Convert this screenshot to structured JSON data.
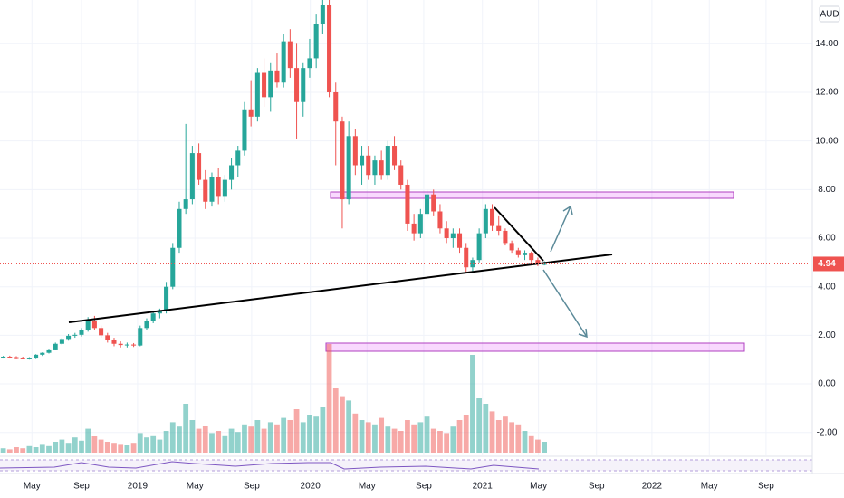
{
  "chart_data": {
    "type": "candlestick",
    "currency": "AUD",
    "ylim": [
      -2.83,
      15.8
    ],
    "yticks": [
      {
        "value": -2,
        "label": "-2.00"
      },
      {
        "value": 0,
        "label": "0.00"
      },
      {
        "value": 2,
        "label": "2.00"
      },
      {
        "value": 4,
        "label": "4.00"
      },
      {
        "value": 6,
        "label": "6.00"
      },
      {
        "value": 8,
        "label": "8.00"
      },
      {
        "value": 10,
        "label": "10.00"
      },
      {
        "value": 12,
        "label": "12.00"
      },
      {
        "value": 14,
        "label": "14.00"
      }
    ],
    "xlim": [
      -0.5,
      124.1
    ],
    "xticks": [
      {
        "value": 4.4,
        "label": "May"
      },
      {
        "value": 12.0,
        "label": "Sep"
      },
      {
        "value": 20.6,
        "label": "2019"
      },
      {
        "value": 29.4,
        "label": "May"
      },
      {
        "value": 38.1,
        "label": "Sep"
      },
      {
        "value": 47.1,
        "label": "2020"
      },
      {
        "value": 55.8,
        "label": "May"
      },
      {
        "value": 64.5,
        "label": "Sep"
      },
      {
        "value": 73.5,
        "label": "2021"
      },
      {
        "value": 82.1,
        "label": "May"
      },
      {
        "value": 91.0,
        "label": "Sep"
      },
      {
        "value": 99.5,
        "label": "2022"
      },
      {
        "value": 108.3,
        "label": "May"
      },
      {
        "value": 117.0,
        "label": "Sep"
      }
    ],
    "last_price": {
      "value": 4.94,
      "label": "4.94"
    },
    "up_color": "#26a69a",
    "down_color": "#ef5350",
    "grid": true,
    "ohlc": [
      [
        1.1,
        1.15,
        1.08,
        1.12
      ],
      [
        1.12,
        1.16,
        1.08,
        1.1
      ],
      [
        1.1,
        1.14,
        1.05,
        1.08
      ],
      [
        1.08,
        1.12,
        1.02,
        1.05
      ],
      [
        1.05,
        1.1,
        1.0,
        1.08
      ],
      [
        1.08,
        1.22,
        1.06,
        1.2
      ],
      [
        1.2,
        1.3,
        1.15,
        1.28
      ],
      [
        1.28,
        1.45,
        1.25,
        1.42
      ],
      [
        1.42,
        1.7,
        1.4,
        1.65
      ],
      [
        1.65,
        1.9,
        1.6,
        1.85
      ],
      [
        1.85,
        2.05,
        1.78,
        1.98
      ],
      [
        1.98,
        2.1,
        1.9,
        2.02
      ],
      [
        2.02,
        2.3,
        1.95,
        2.2
      ],
      [
        2.2,
        2.75,
        2.15,
        2.6
      ],
      [
        2.6,
        2.8,
        2.2,
        2.3
      ],
      [
        2.3,
        2.4,
        1.9,
        2.0
      ],
      [
        2.0,
        2.1,
        1.7,
        1.8
      ],
      [
        1.8,
        1.9,
        1.55,
        1.65
      ],
      [
        1.65,
        1.75,
        1.5,
        1.6
      ],
      [
        1.6,
        1.7,
        1.5,
        1.62
      ],
      [
        1.62,
        1.68,
        1.52,
        1.58
      ],
      [
        1.58,
        2.4,
        1.55,
        2.3
      ],
      [
        2.3,
        2.7,
        2.2,
        2.6
      ],
      [
        2.6,
        3.0,
        2.5,
        2.9
      ],
      [
        2.9,
        3.1,
        2.7,
        3.0
      ],
      [
        3.0,
        4.2,
        2.9,
        4.0
      ],
      [
        4.0,
        5.8,
        3.9,
        5.6
      ],
      [
        5.6,
        7.5,
        5.4,
        7.2
      ],
      [
        7.2,
        10.7,
        7.0,
        7.6
      ],
      [
        7.6,
        9.8,
        7.4,
        9.5
      ],
      [
        9.5,
        9.9,
        8.2,
        8.4
      ],
      [
        8.4,
        8.8,
        7.2,
        7.5
      ],
      [
        7.5,
        8.7,
        7.3,
        8.5
      ],
      [
        8.5,
        8.9,
        7.4,
        7.7
      ],
      [
        7.7,
        8.6,
        7.5,
        8.4
      ],
      [
        8.4,
        9.3,
        8.0,
        9.0
      ],
      [
        9.0,
        9.8,
        8.5,
        9.6
      ],
      [
        9.6,
        11.6,
        9.4,
        11.3
      ],
      [
        11.3,
        12.5,
        10.6,
        11.0
      ],
      [
        11.0,
        13.0,
        10.8,
        12.8
      ],
      [
        12.8,
        13.4,
        11.4,
        11.8
      ],
      [
        11.8,
        13.2,
        11.2,
        12.9
      ],
      [
        12.9,
        13.6,
        12.2,
        12.4
      ],
      [
        12.4,
        14.4,
        12.2,
        14.1
      ],
      [
        14.1,
        14.6,
        12.6,
        13.0
      ],
      [
        13.0,
        14.0,
        10.1,
        11.6
      ],
      [
        11.6,
        13.2,
        11.0,
        13.0
      ],
      [
        13.0,
        14.2,
        12.6,
        13.4
      ],
      [
        13.4,
        15.2,
        13.0,
        14.8
      ],
      [
        14.8,
        15.9,
        14.4,
        15.6
      ],
      [
        15.6,
        15.9,
        11.8,
        12.0
      ],
      [
        12.0,
        12.4,
        9.0,
        10.8
      ],
      [
        10.8,
        11.0,
        6.4,
        7.6
      ],
      [
        7.6,
        10.8,
        7.4,
        10.2
      ],
      [
        10.2,
        10.5,
        8.6,
        9.0
      ],
      [
        9.0,
        9.8,
        8.2,
        9.4
      ],
      [
        9.4,
        9.8,
        8.4,
        8.6
      ],
      [
        8.6,
        9.4,
        8.2,
        9.2
      ],
      [
        9.2,
        9.6,
        8.4,
        8.6
      ],
      [
        8.6,
        10.0,
        8.4,
        9.8
      ],
      [
        9.8,
        10.2,
        8.8,
        9.0
      ],
      [
        9.0,
        9.2,
        8.0,
        8.2
      ],
      [
        8.2,
        8.4,
        6.3,
        6.6
      ],
      [
        6.6,
        7.0,
        5.9,
        6.2
      ],
      [
        6.2,
        7.2,
        6.0,
        7.0
      ],
      [
        7.0,
        8.0,
        6.8,
        7.8
      ],
      [
        7.8,
        8.0,
        6.9,
        7.1
      ],
      [
        7.1,
        7.4,
        6.2,
        6.4
      ],
      [
        6.4,
        6.7,
        5.8,
        6.0
      ],
      [
        6.0,
        6.4,
        5.6,
        6.2
      ],
      [
        6.2,
        6.4,
        5.4,
        5.6
      ],
      [
        5.6,
        5.8,
        4.6,
        4.8
      ],
      [
        4.8,
        5.2,
        4.6,
        5.1
      ],
      [
        5.1,
        6.4,
        5.0,
        6.2
      ],
      [
        6.2,
        7.4,
        6.0,
        7.2
      ],
      [
        7.2,
        7.4,
        6.3,
        6.5
      ],
      [
        6.5,
        6.9,
        6.1,
        6.3
      ],
      [
        6.3,
        6.4,
        5.7,
        5.8
      ],
      [
        5.8,
        5.9,
        5.4,
        5.5
      ],
      [
        5.5,
        5.6,
        5.2,
        5.3
      ],
      [
        5.3,
        5.5,
        5.1,
        5.4
      ],
      [
        5.4,
        5.45,
        5.0,
        5.1
      ],
      [
        5.1,
        5.2,
        4.85,
        4.94
      ],
      [
        4.94,
        5.05,
        4.88,
        4.94
      ]
    ],
    "volume": [
      4,
      3,
      5,
      4,
      6,
      5,
      8,
      6,
      10,
      12,
      9,
      14,
      11,
      22,
      15,
      12,
      10,
      9,
      8,
      7,
      9,
      18,
      14,
      16,
      12,
      20,
      28,
      24,
      45,
      30,
      22,
      25,
      18,
      20,
      16,
      22,
      19,
      26,
      24,
      30,
      22,
      28,
      26,
      32,
      30,
      40,
      28,
      35,
      34,
      42,
      100,
      60,
      52,
      48,
      36,
      30,
      28,
      26,
      32,
      24,
      22,
      20,
      30,
      26,
      28,
      34,
      22,
      20,
      18,
      24,
      30,
      35,
      90,
      50,
      45,
      38,
      30,
      34,
      28,
      26,
      20,
      16,
      12,
      10
    ]
  }
}
